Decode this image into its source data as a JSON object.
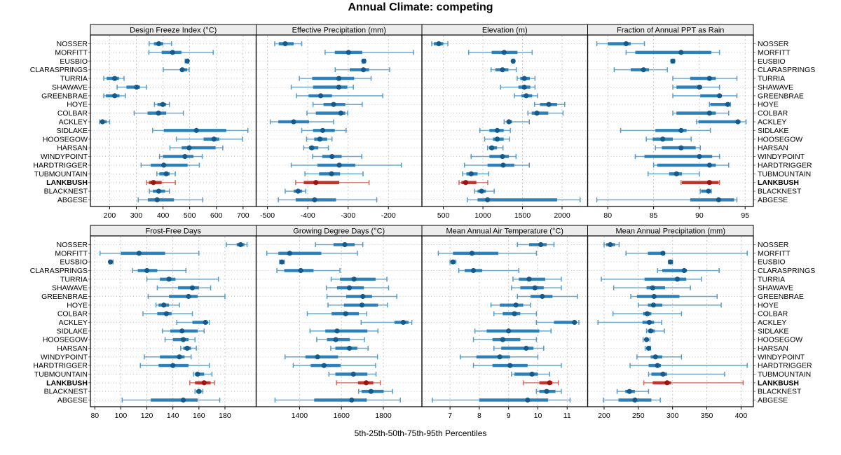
{
  "title": "Annual Climate: competing",
  "xlabel": "5th-25th-50th-75th-95th Percentiles",
  "stations": [
    "NOSSER",
    "MORFITT",
    "EUSBIO",
    "CLARASPRINGS",
    "TURRIA",
    "SHAWAVE",
    "GREENBRAE",
    "HOYE",
    "COLBAR",
    "ACKLEY",
    "SIDLAKE",
    "HOOSEGOW",
    "HARSAN",
    "WINDYPOINT",
    "HARDTRIGGER",
    "TUBMOUNTAIN",
    "LANKBUSH",
    "BLACKNEST",
    "ABGESE"
  ],
  "highlight_station": "LANKBUSH",
  "colors": {
    "normal_whisker": "#549bc9",
    "normal_band": "#2279b5",
    "normal_dot": "#155a8a",
    "highlight_whisker": "#d0685e",
    "highlight_band": "#c1271d",
    "highlight_dot": "#99150f",
    "grid": "#c9c9c9",
    "strip_bg": "#ececec",
    "border": "#000000"
  },
  "chart_data": [
    {
      "type": "interval-dotplot",
      "title": "Design Freeze Index (°C)",
      "xlim": [
        128,
        749
      ],
      "ticks": [
        200,
        300,
        400,
        500,
        600,
        700
      ],
      "series": [
        [
          348,
          366,
          384,
          401,
          432
        ],
        [
          347,
          395,
          436,
          469,
          588
        ],
        [
          483,
          487,
          491,
          494,
          496
        ],
        [
          401,
          465,
          472,
          491,
          498
        ],
        [
          178,
          189,
          219,
          235,
          254
        ],
        [
          228,
          263,
          301,
          314,
          338
        ],
        [
          178,
          186,
          219,
          237,
          259
        ],
        [
          368,
          379,
          399,
          412,
          424
        ],
        [
          292,
          342,
          383,
          412,
          476
        ],
        [
          162,
          165,
          173,
          189,
          200
        ],
        [
          361,
          403,
          525,
          637,
          718
        ],
        [
          450,
          552,
          591,
          611,
          698
        ],
        [
          426,
          470,
          498,
          597,
          624
        ],
        [
          387,
          400,
          482,
          514,
          547
        ],
        [
          318,
          354,
          403,
          492,
          536
        ],
        [
          377,
          386,
          412,
          425,
          446
        ],
        [
          338,
          347,
          364,
          395,
          446
        ],
        [
          349,
          362,
          384,
          408,
          424
        ],
        [
          307,
          343,
          378,
          441,
          549
        ]
      ]
    },
    {
      "type": "interval-dotplot",
      "title": "Effective Precipitation (mm)",
      "xlim": [
        -528,
        -117
      ],
      "ticks": [
        -500,
        -400,
        -300,
        -200
      ],
      "series": [
        [
          -482,
          -472,
          -456,
          -435,
          -415
        ],
        [
          -357,
          -333,
          -299,
          -265,
          -138
        ],
        [
          -265,
          -263,
          -261,
          -259,
          -257
        ],
        [
          -332,
          -296,
          -262,
          -248,
          -197
        ],
        [
          -421,
          -389,
          -323,
          -285,
          -243
        ],
        [
          -441,
          -387,
          -323,
          -302,
          -287
        ],
        [
          -428,
          -398,
          -368,
          -340,
          -214
        ],
        [
          -387,
          -361,
          -336,
          -307,
          -265
        ],
        [
          -402,
          -380,
          -318,
          -307,
          -301
        ],
        [
          -493,
          -473,
          -435,
          -397,
          -336
        ],
        [
          -415,
          -387,
          -363,
          -333,
          -305
        ],
        [
          -403,
          -384,
          -370,
          -352,
          -340
        ],
        [
          -410,
          -397,
          -390,
          -374,
          -349
        ],
        [
          -388,
          -364,
          -340,
          -316,
          -266
        ],
        [
          -441,
          -376,
          -322,
          -282,
          -168
        ],
        [
          -407,
          -372,
          -341,
          -320,
          -263
        ],
        [
          -430,
          -410,
          -380,
          -322,
          -248
        ],
        [
          -456,
          -435,
          -424,
          -414,
          -405
        ],
        [
          -473,
          -430,
          -383,
          -330,
          -229
        ]
      ]
    },
    {
      "type": "interval-dotplot",
      "title": "Elevation (m)",
      "xlim": [
        229,
        2323
      ],
      "ticks": [
        500,
        1000,
        1500,
        2000
      ],
      "series": [
        [
          353,
          380,
          443,
          500,
          557
        ],
        [
          820,
          1110,
          1268,
          1436,
          1622
        ],
        [
          1370,
          1376,
          1382,
          1388,
          1395
        ],
        [
          1103,
          1157,
          1247,
          1322,
          1421
        ],
        [
          1433,
          1472,
          1523,
          1592,
          1658
        ],
        [
          1223,
          1448,
          1523,
          1598,
          1658
        ],
        [
          1397,
          1487,
          1547,
          1622,
          1691
        ],
        [
          1652,
          1721,
          1832,
          1937,
          2033
        ],
        [
          1568,
          1616,
          1682,
          1826,
          2012
        ],
        [
          1268,
          1298,
          1328,
          1367,
          1586
        ],
        [
          962,
          1082,
          1181,
          1262,
          1346
        ],
        [
          1022,
          1127,
          1181,
          1262,
          1337
        ],
        [
          1058,
          1076,
          1112,
          1178,
          1253
        ],
        [
          851,
          1082,
          1247,
          1328,
          1418
        ],
        [
          767,
          1058,
          1256,
          1397,
          1586
        ],
        [
          743,
          791,
          851,
          932,
          1073
        ],
        [
          698,
          728,
          782,
          917,
          1061
        ],
        [
          896,
          932,
          983,
          1037,
          1142
        ],
        [
          803,
          932,
          1058,
          1937,
          2228
        ]
      ]
    },
    {
      "type": "interval-dotplot",
      "title": "Fraction of Annual PPT as Rain",
      "xlim": [
        77.8,
        95.9
      ],
      "ticks": [
        80,
        85,
        90,
        95
      ],
      "series": [
        [
          78.8,
          80.0,
          82.0,
          82.5,
          84.0
        ],
        [
          82.0,
          83.0,
          88.0,
          91.3,
          92.2
        ],
        [
          86.9,
          87.0,
          87.1,
          87.2,
          87.3
        ],
        [
          80.7,
          82.5,
          83.9,
          84.5,
          86.5
        ],
        [
          87.1,
          89.0,
          91.1,
          91.8,
          94.1
        ],
        [
          87.1,
          87.5,
          90.0,
          90.3,
          92.2
        ],
        [
          87.1,
          90.1,
          92.2,
          92.4,
          94.1
        ],
        [
          91.1,
          91.2,
          93.1,
          93.2,
          93.4
        ],
        [
          87.1,
          87.5,
          91.1,
          91.8,
          93.2
        ],
        [
          89.7,
          89.9,
          94.2,
          94.5,
          95.1
        ],
        [
          81.4,
          85.2,
          88.0,
          88.6,
          91.2
        ],
        [
          84.2,
          84.9,
          86.0,
          87.1,
          89.1
        ],
        [
          85.2,
          85.9,
          88.0,
          89.6,
          90.1
        ],
        [
          83.0,
          84.0,
          90.0,
          91.4,
          92.2
        ],
        [
          85.0,
          85.4,
          91.1,
          91.8,
          93.2
        ],
        [
          84.4,
          86.7,
          87.5,
          88.1,
          90.0
        ],
        [
          88.0,
          88.1,
          91.1,
          92.1,
          92.2
        ],
        [
          90.1,
          90.2,
          91.0,
          91.2,
          91.3
        ],
        [
          78.8,
          89.0,
          92.1,
          93.8,
          94.1
        ]
      ]
    },
    {
      "type": "interval-dotplot",
      "title": "Frost-Free Days",
      "xlim": [
        76.6,
        204
      ],
      "ticks": [
        80,
        100,
        120,
        140,
        160,
        180
      ],
      "series": [
        [
          181,
          189,
          192,
          195,
          197
        ],
        [
          84,
          100,
          114,
          134,
          160
        ],
        [
          91,
          92,
          92,
          93,
          94
        ],
        [
          109,
          113,
          120,
          128,
          150
        ],
        [
          120,
          130,
          137,
          142,
          175
        ],
        [
          128,
          144,
          155,
          160,
          169
        ],
        [
          121,
          137,
          152,
          159,
          180
        ],
        [
          127,
          129,
          133,
          137,
          145
        ],
        [
          117,
          128,
          135,
          139,
          155
        ],
        [
          143,
          155,
          165,
          167,
          168
        ],
        [
          132,
          138,
          147,
          159,
          164
        ],
        [
          134,
          140,
          148,
          152,
          157
        ],
        [
          146,
          148,
          151,
          154,
          158
        ],
        [
          118,
          130,
          145,
          149,
          154
        ],
        [
          115,
          129,
          140,
          152,
          168
        ],
        [
          156,
          157,
          159,
          164,
          170
        ],
        [
          153,
          157,
          164,
          169,
          172
        ],
        [
          157,
          158,
          160,
          162,
          163
        ],
        [
          101,
          123,
          148,
          159,
          176
        ]
      ]
    },
    {
      "type": "interval-dotplot",
      "title": "Growing Degree Days (°C)",
      "xlim": [
        1193,
        1984
      ],
      "ticks": [
        1400,
        1600,
        1800
      ],
      "series": [
        [
          1476,
          1562,
          1616,
          1663,
          1702
        ],
        [
          1244,
          1299,
          1353,
          1504,
          1676
        ],
        [
          1305,
          1311,
          1316,
          1321,
          1327
        ],
        [
          1292,
          1327,
          1406,
          1467,
          1593
        ],
        [
          1551,
          1593,
          1660,
          1763,
          1817
        ],
        [
          1528,
          1579,
          1638,
          1707,
          1825
        ],
        [
          1531,
          1623,
          1702,
          1746,
          1864
        ],
        [
          1536,
          1612,
          1698,
          1774,
          1819
        ],
        [
          1437,
          1553,
          1620,
          1683,
          1721
        ],
        [
          1694,
          1853,
          1895,
          1920,
          1936
        ],
        [
          1450,
          1523,
          1579,
          1724,
          1774
        ],
        [
          1482,
          1531,
          1573,
          1640,
          1710
        ],
        [
          1549,
          1571,
          1638,
          1676,
          1727
        ],
        [
          1331,
          1428,
          1486,
          1584,
          1772
        ],
        [
          1370,
          1453,
          1517,
          1596,
          1763
        ],
        [
          1540,
          1571,
          1657,
          1724,
          1765
        ],
        [
          1577,
          1679,
          1718,
          1752,
          1786
        ],
        [
          1682,
          1696,
          1741,
          1802,
          1844
        ],
        [
          1283,
          1470,
          1649,
          1721,
          1881
        ]
      ]
    },
    {
      "type": "interval-dotplot",
      "title": "Mean Annual Air Temperature (°C)",
      "xlim": [
        6.04,
        11.7
      ],
      "ticks": [
        7,
        8,
        9,
        10,
        11
      ],
      "series": [
        [
          9.3,
          9.7,
          10.1,
          10.3,
          10.55
        ],
        [
          6.6,
          7.1,
          7.75,
          8.65,
          9.95
        ],
        [
          7.0,
          7.05,
          7.1,
          7.15,
          7.2
        ],
        [
          7.3,
          7.5,
          7.8,
          8.1,
          9.35
        ],
        [
          9.15,
          9.35,
          9.7,
          10.25,
          10.8
        ],
        [
          9.1,
          9.4,
          9.9,
          10.2,
          10.8
        ],
        [
          9.3,
          9.75,
          10.15,
          10.5,
          11.35
        ],
        [
          8.4,
          8.7,
          9.25,
          9.5,
          9.75
        ],
        [
          8.5,
          8.8,
          9.2,
          9.4,
          9.95
        ],
        [
          9.95,
          10.55,
          11.25,
          11.3,
          11.4
        ],
        [
          7.85,
          8.25,
          9.0,
          10.05,
          10.45
        ],
        [
          7.8,
          8.45,
          8.8,
          9.4,
          9.95
        ],
        [
          8.5,
          8.75,
          9.6,
          9.85,
          10.2
        ],
        [
          7.35,
          7.9,
          8.7,
          9.05,
          10.0
        ],
        [
          7.8,
          8.45,
          9.05,
          9.65,
          10.8
        ],
        [
          9.1,
          9.2,
          9.8,
          10.0,
          10.4
        ],
        [
          9.5,
          10.05,
          10.4,
          10.5,
          10.7
        ],
        [
          9.95,
          10.05,
          10.3,
          10.6,
          10.8
        ],
        [
          6.4,
          8.0,
          9.65,
          10.35,
          11.1
        ]
      ]
    },
    {
      "type": "interval-dotplot",
      "title": "Mean Annual Precipitation (mm)",
      "xlim": [
        176,
        418
      ],
      "ticks": [
        200,
        250,
        300,
        350,
        400
      ],
      "series": [
        [
          200,
          203,
          209,
          216,
          222
        ],
        [
          232,
          264,
          286,
          289,
          409
        ],
        [
          294,
          295,
          297,
          299,
          300
        ],
        [
          278,
          285,
          317,
          321,
          368
        ],
        [
          196,
          259,
          307,
          320,
          342
        ],
        [
          214,
          262,
          271,
          289,
          326
        ],
        [
          239,
          248,
          273,
          310,
          365
        ],
        [
          250,
          264,
          272,
          285,
          371
        ],
        [
          213,
          257,
          263,
          269,
          313
        ],
        [
          191,
          256,
          266,
          273,
          284
        ],
        [
          262,
          264,
          268,
          274,
          288
        ],
        [
          257,
          259,
          262,
          265,
          267
        ],
        [
          260,
          262,
          265,
          267,
          268
        ],
        [
          248,
          268,
          275,
          285,
          313
        ],
        [
          238,
          265,
          278,
          283,
          409
        ],
        [
          265,
          269,
          286,
          292,
          376
        ],
        [
          258,
          271,
          292,
          298,
          403
        ],
        [
          219,
          231,
          237,
          245,
          265
        ],
        [
          199,
          221,
          245,
          269,
          282
        ]
      ]
    }
  ]
}
